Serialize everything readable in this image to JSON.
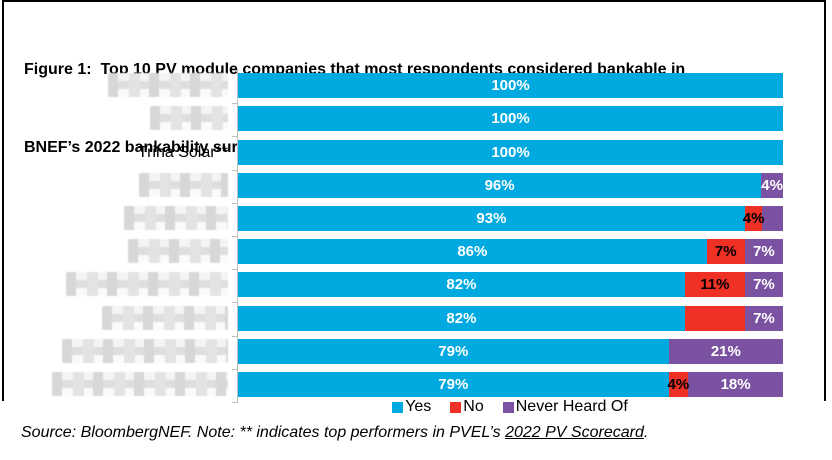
{
  "title": {
    "line1": "Figure 1:  Top 10 PV module companies that most respondents considered bankable in",
    "line2": "BNEF’s 2022 bankability survey results"
  },
  "colors": {
    "yes": "#00A9E0",
    "no": "#EE3124",
    "nho": "#7B52A1",
    "axis": "#BFBFBF",
    "label_on_yes": "#FFFFFF",
    "label_on_no": "#000000",
    "label_on_nho": "#FFFFFF"
  },
  "legend": [
    {
      "key": "yes",
      "label": "Yes"
    },
    {
      "key": "no",
      "label": "No"
    },
    {
      "key": "nho",
      "label": "Never Heard Of"
    }
  ],
  "source": {
    "prefix": "Source: BloombergNEF. Note: ** indicates top performers in PVEL’s ",
    "link": "2022 PV Scorecard",
    "suffix": "."
  },
  "chart_data": {
    "type": "bar",
    "orientation": "horizontal",
    "stacked": true,
    "x_range": [
      0,
      100
    ],
    "grid": false,
    "legend_position": "bottom",
    "series_names": [
      "Yes",
      "No",
      "Never Heard Of"
    ],
    "note": "Company names except Trina Solar** are pixelated/redacted in the image",
    "rows": [
      {
        "company": null,
        "redacted": true,
        "redact_w": 120,
        "values": {
          "yes": 100,
          "no": 0,
          "nho": 0
        },
        "labels": {
          "yes": "100%",
          "no": null,
          "nho": null
        }
      },
      {
        "company": null,
        "redacted": true,
        "redact_w": 78,
        "values": {
          "yes": 100,
          "no": 0,
          "nho": 0
        },
        "labels": {
          "yes": "100%",
          "no": null,
          "nho": null
        }
      },
      {
        "company": "Trina Solar**",
        "redacted": false,
        "redact_w": 0,
        "values": {
          "yes": 100,
          "no": 0,
          "nho": 0
        },
        "labels": {
          "yes": "100%",
          "no": null,
          "nho": null
        }
      },
      {
        "company": null,
        "redacted": true,
        "redact_w": 89,
        "values": {
          "yes": 96,
          "no": 0,
          "nho": 4
        },
        "labels": {
          "yes": "96%",
          "no": null,
          "nho": "4%"
        }
      },
      {
        "company": null,
        "redacted": true,
        "redact_w": 104,
        "values": {
          "yes": 93,
          "no": 4,
          "nho": 3
        },
        "draw": {
          "no": 3.2,
          "nho": 3.8
        },
        "labels": {
          "yes": "93%",
          "no": "4%",
          "nho": null
        }
      },
      {
        "company": null,
        "redacted": true,
        "redact_w": 100,
        "values": {
          "yes": 86,
          "no": 7,
          "nho": 7
        },
        "labels": {
          "yes": "86%",
          "no": "7%",
          "nho": "7%"
        }
      },
      {
        "company": null,
        "redacted": true,
        "redact_w": 162,
        "values": {
          "yes": 82,
          "no": 11,
          "nho": 7
        },
        "labels": {
          "yes": "82%",
          "no": "11%",
          "nho": "7%"
        }
      },
      {
        "company": null,
        "redacted": true,
        "redact_w": 126,
        "values": {
          "yes": 82,
          "no": 11,
          "nho": 7
        },
        "labels": {
          "yes": "82%",
          "no": null,
          "nho": "7%"
        }
      },
      {
        "company": null,
        "redacted": true,
        "redact_w": 166,
        "values": {
          "yes": 79,
          "no": 0,
          "nho": 21
        },
        "labels": {
          "yes": "79%",
          "no": null,
          "nho": "21%"
        }
      },
      {
        "company": null,
        "redacted": true,
        "redact_w": 176,
        "values": {
          "yes": 79,
          "no": 4,
          "nho": 18
        },
        "draw": {
          "no": 3.6,
          "nho": 17.4
        },
        "labels": {
          "yes": "79%",
          "no": "4%",
          "nho": "18%"
        }
      }
    ]
  }
}
